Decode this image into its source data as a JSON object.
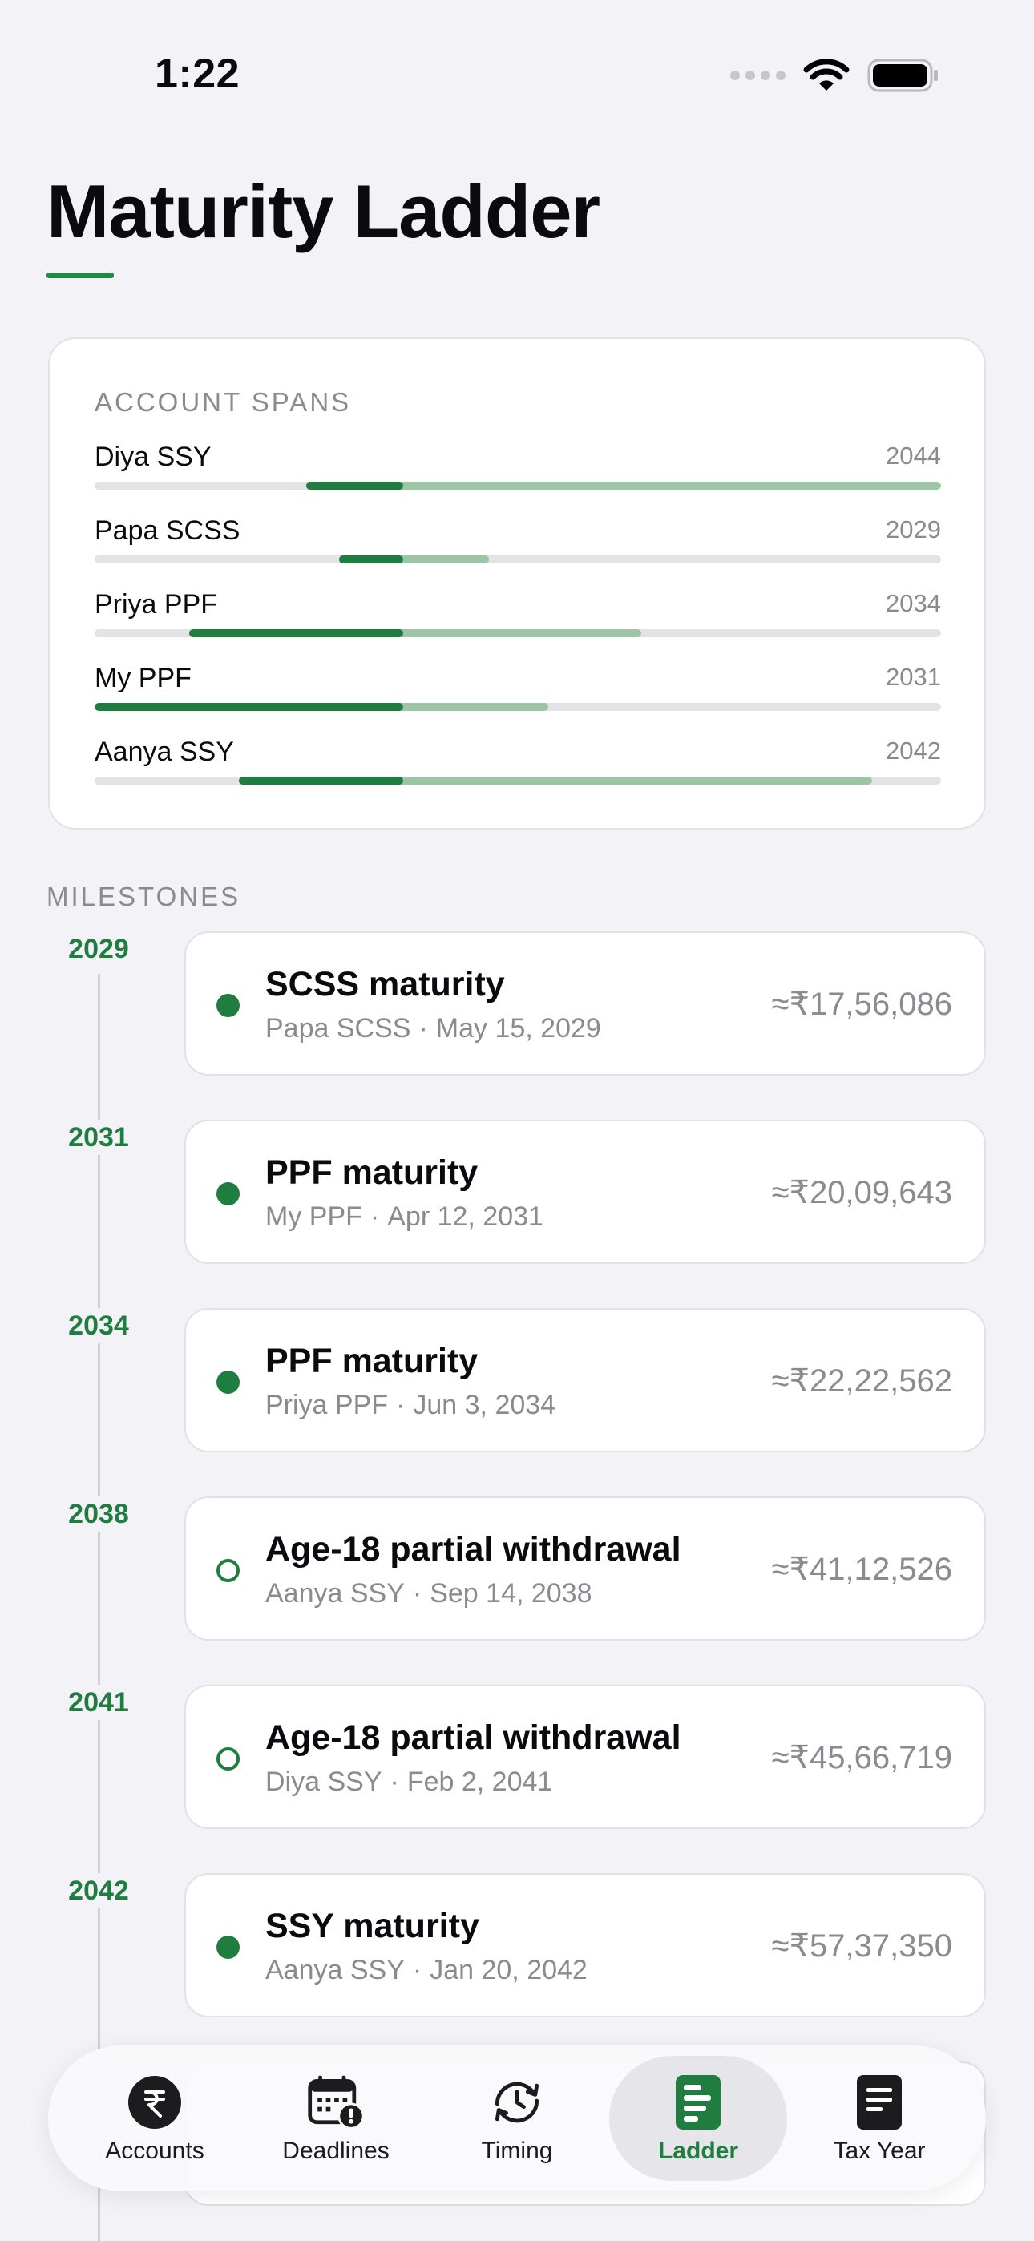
{
  "status_bar": {
    "time": "1:22"
  },
  "page": {
    "title": "Maturity Ladder"
  },
  "account_spans": {
    "label": "ACCOUNT SPANS",
    "rows": [
      {
        "name": "Diya SSY",
        "end_year": "2044"
      },
      {
        "name": "Papa SCSS",
        "end_year": "2029"
      },
      {
        "name": "Priya PPF",
        "end_year": "2034"
      },
      {
        "name": "My PPF",
        "end_year": "2031"
      },
      {
        "name": "Aanya SSY",
        "end_year": "2042"
      }
    ]
  },
  "milestones": {
    "label": "MILESTONES",
    "items": [
      {
        "year": "2029",
        "title": "SCSS maturity",
        "account": "Papa SCSS",
        "date": "May 15, 2029",
        "amount": "≈₹17,56,086",
        "marker": "filled"
      },
      {
        "year": "2031",
        "title": "PPF maturity",
        "account": "My PPF",
        "date": "Apr 12, 2031",
        "amount": "≈₹20,09,643",
        "marker": "filled"
      },
      {
        "year": "2034",
        "title": "PPF maturity",
        "account": "Priya PPF",
        "date": "Jun 3, 2034",
        "amount": "≈₹22,22,562",
        "marker": "filled"
      },
      {
        "year": "2038",
        "title": "Age-18 partial withdrawal",
        "account": "Aanya SSY",
        "date": "Sep 14, 2038",
        "amount": "≈₹41,12,526",
        "marker": "hollow"
      },
      {
        "year": "2041",
        "title": "Age-18 partial withdrawal",
        "account": "Diya SSY",
        "date": "Feb 2, 2041",
        "amount": "≈₹45,66,719",
        "marker": "hollow"
      },
      {
        "year": "2042",
        "title": "SSY maturity",
        "account": "Aanya SSY",
        "date": "Jan 20, 2042",
        "amount": "≈₹57,37,350",
        "marker": "filled"
      }
    ],
    "separator": "·"
  },
  "tab_bar": {
    "tabs": [
      {
        "label": "Accounts",
        "icon": "rupee-icon"
      },
      {
        "label": "Deadlines",
        "icon": "calendar-alert-icon"
      },
      {
        "label": "Timing",
        "icon": "clock-cycle-icon"
      },
      {
        "label": "Ladder",
        "icon": "ladder-document-icon",
        "active": true
      },
      {
        "label": "Tax Year",
        "icon": "document-icon"
      }
    ]
  },
  "colors": {
    "accent": "#1f7d3f",
    "span_elapsed": "#1f7d3f",
    "span_remaining": "#9cc5a6",
    "background": "#f2f2f7"
  }
}
